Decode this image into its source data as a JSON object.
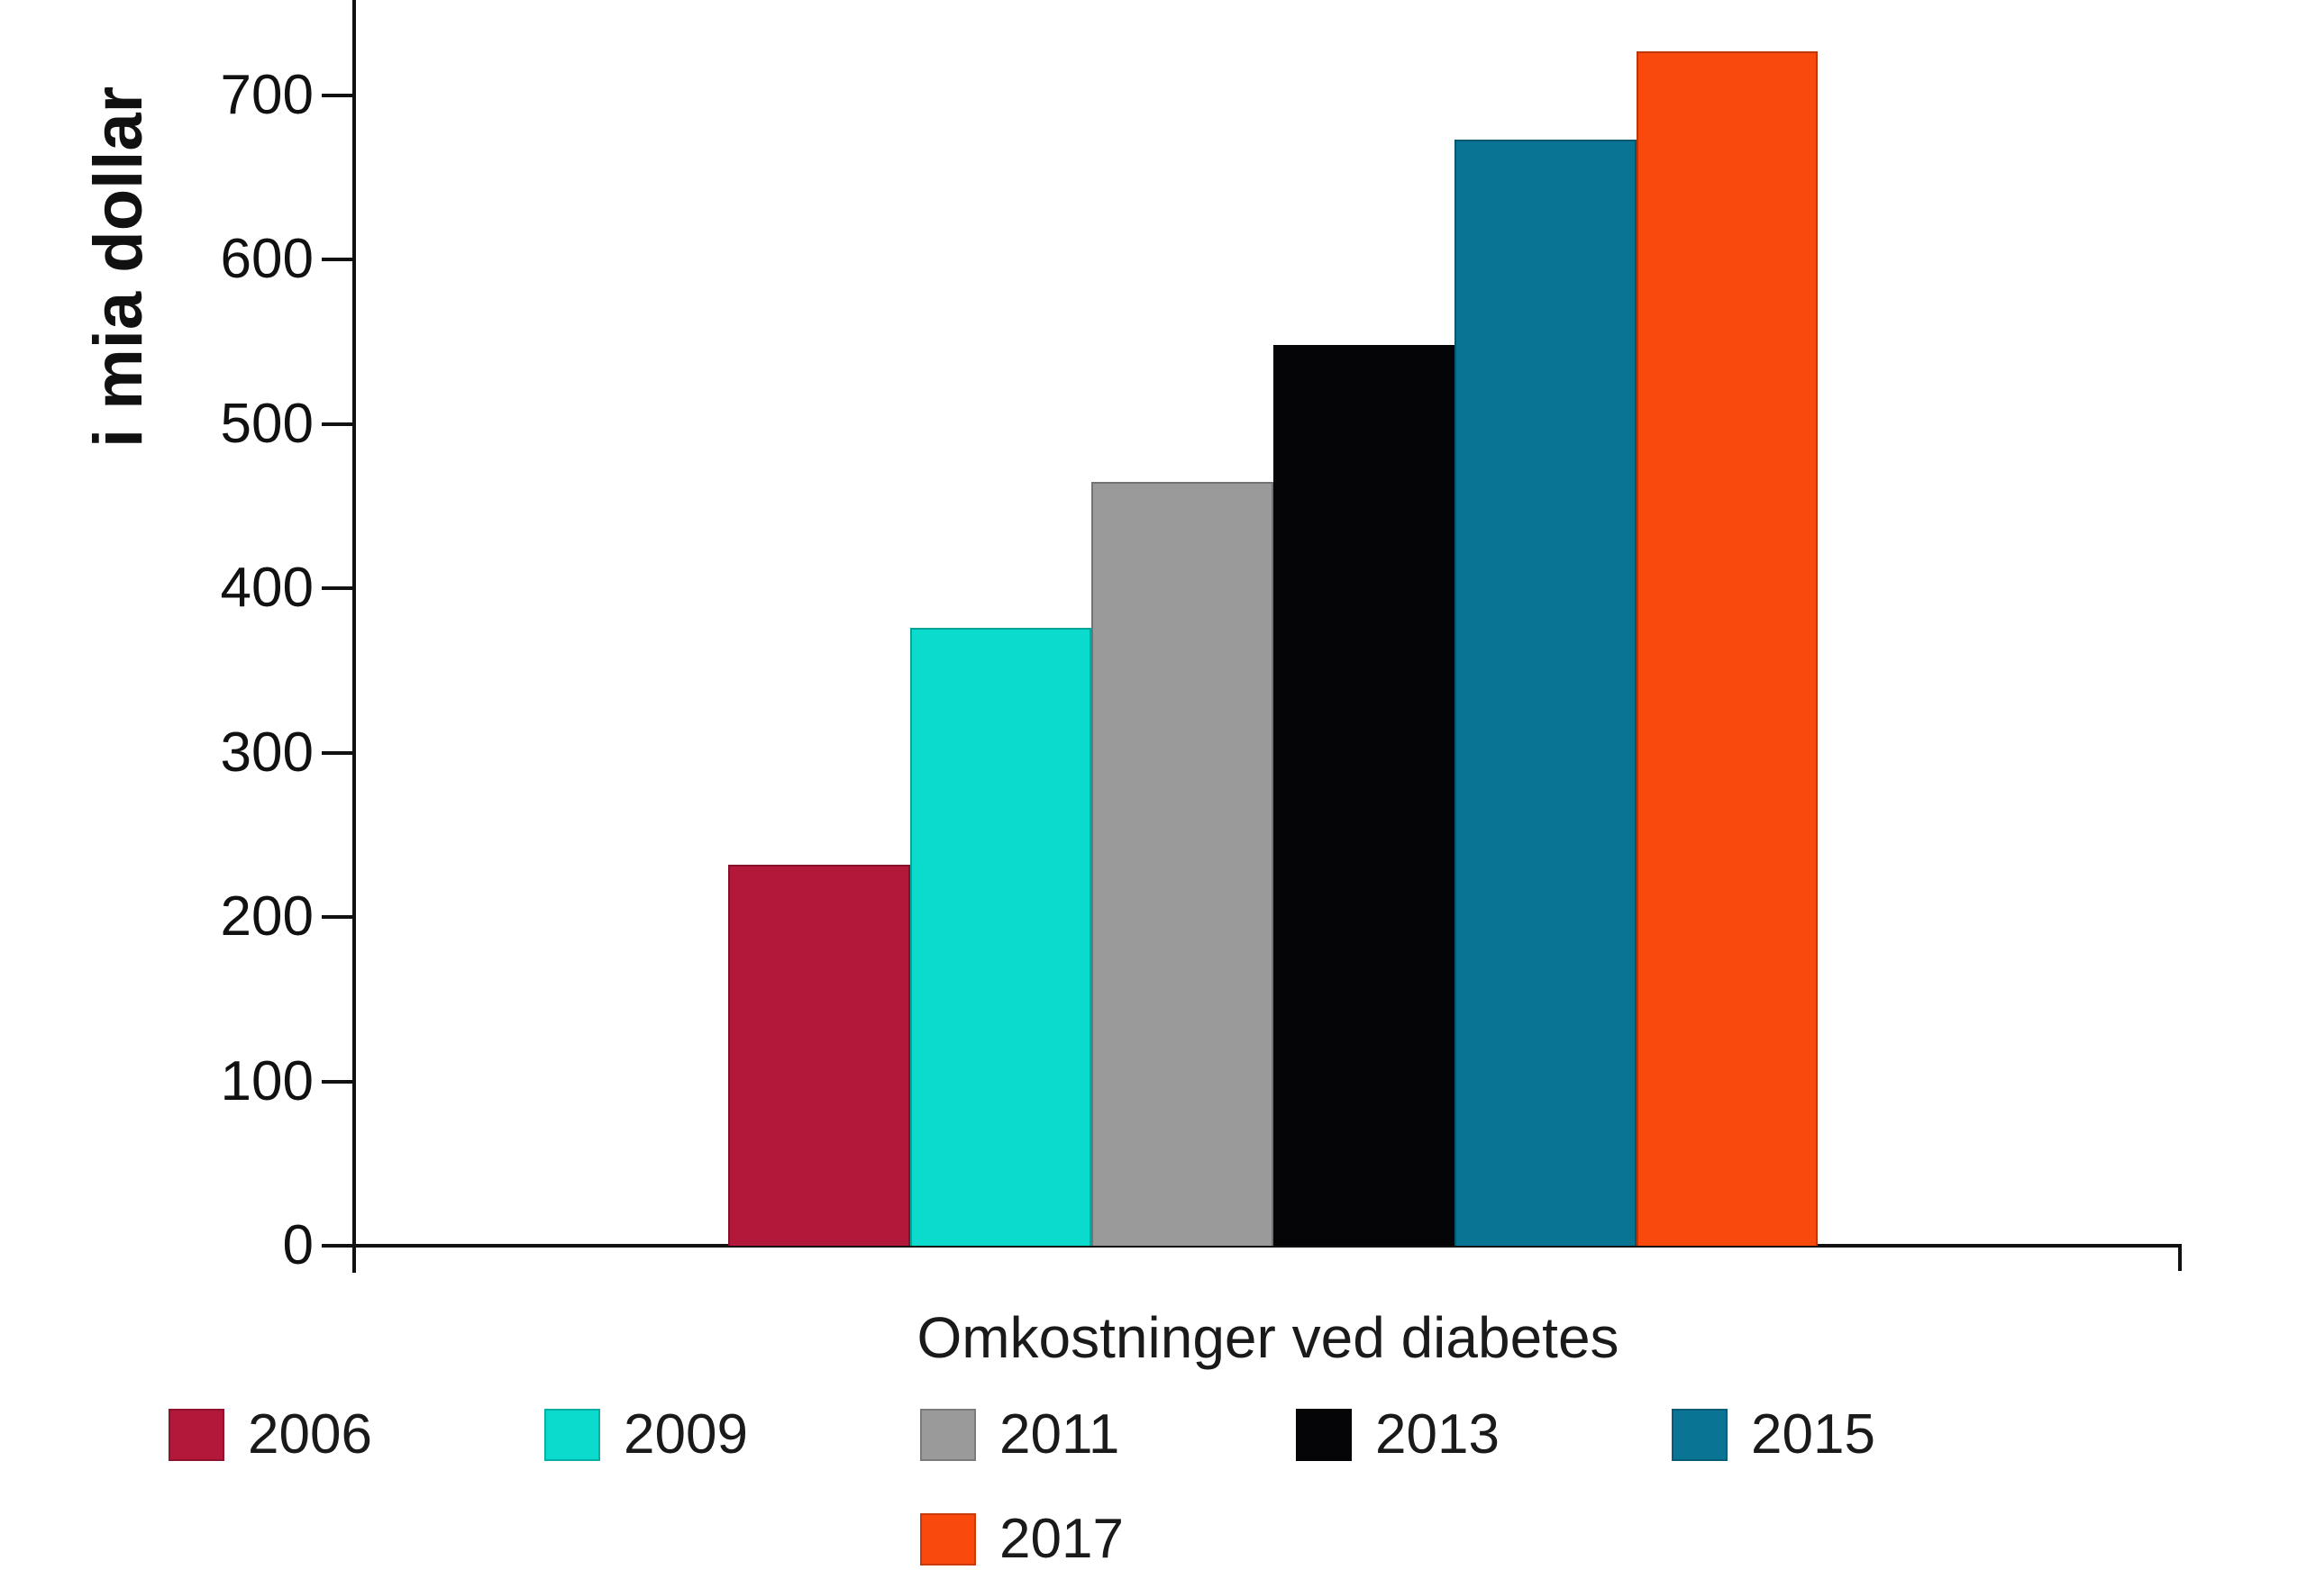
{
  "chart_data": {
    "type": "bar",
    "title": "Omkostninger ved diabetes",
    "ylabel": "i mia dollar",
    "categories": [
      "2006",
      "2009",
      "2011",
      "2013",
      "2015",
      "2017"
    ],
    "values": [
      232,
      376,
      465,
      548,
      673,
      727
    ],
    "colors": [
      "#b3173a",
      "#0adbcd",
      "#9a9a9a",
      "#050508",
      "#0a7495",
      "#fa490c"
    ],
    "yticks": [
      0,
      100,
      200,
      300,
      400,
      500,
      600,
      700
    ],
    "ylim": [
      0,
      758
    ],
    "xlabel": "Omkostninger ved diabetes",
    "grid": false,
    "legend_position": "bottom",
    "legend_rows": [
      [
        "2006",
        "2009",
        "2011",
        "2013",
        "2015"
      ],
      [
        "2017"
      ]
    ],
    "axis_color": "#111111",
    "background_color": "#ffffff"
  }
}
